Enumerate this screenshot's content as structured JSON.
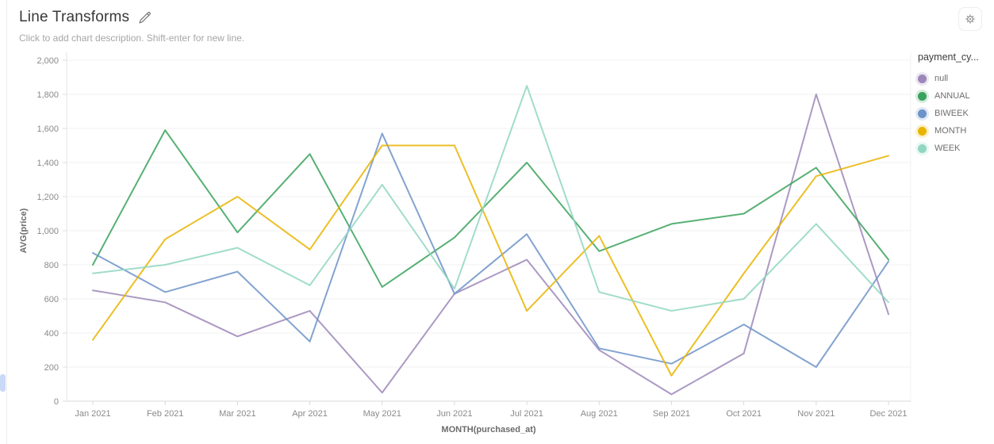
{
  "header": {
    "title": "Line Transforms",
    "subtitle": "Click to add chart description. Shift-enter for new line."
  },
  "icons": {
    "edit": "pencil-icon",
    "settings": "gear-icon"
  },
  "legend": {
    "title": "payment_cy..."
  },
  "chart_data": {
    "type": "line",
    "x": [
      "Jan 2021",
      "Feb 2021",
      "Mar 2021",
      "Apr 2021",
      "May 2021",
      "Jun 2021",
      "Jul 2021",
      "Aug 2021",
      "Sep 2021",
      "Oct 2021",
      "Nov 2021",
      "Dec 2021"
    ],
    "series": [
      {
        "name": "null",
        "color": "#9c87b8",
        "values": [
          650,
          580,
          380,
          530,
          50,
          630,
          830,
          300,
          40,
          280,
          1800,
          510
        ]
      },
      {
        "name": "ANNUAL",
        "color": "#3aa25c",
        "values": [
          800,
          1590,
          990,
          1450,
          670,
          960,
          1400,
          880,
          1040,
          1100,
          1370,
          830
        ]
      },
      {
        "name": "BIWEEK",
        "color": "#6d93c8",
        "values": [
          870,
          640,
          760,
          350,
          1570,
          630,
          980,
          310,
          220,
          450,
          200,
          820
        ]
      },
      {
        "name": "MONTH",
        "color": "#e9b400",
        "values": [
          360,
          950,
          1200,
          890,
          1500,
          1500,
          530,
          970,
          150,
          750,
          1320,
          1440
        ]
      },
      {
        "name": "WEEK",
        "color": "#91d6c1",
        "values": [
          750,
          800,
          900,
          680,
          1270,
          660,
          1850,
          640,
          530,
          600,
          1040,
          580
        ]
      }
    ],
    "xlabel": "MONTH(purchased_at)",
    "ylabel": "AVG(price)",
    "ylim": [
      0,
      2000
    ],
    "ytick_step": 200,
    "grid": true,
    "legend_position": "right",
    "legend_title": "payment_cy..."
  }
}
